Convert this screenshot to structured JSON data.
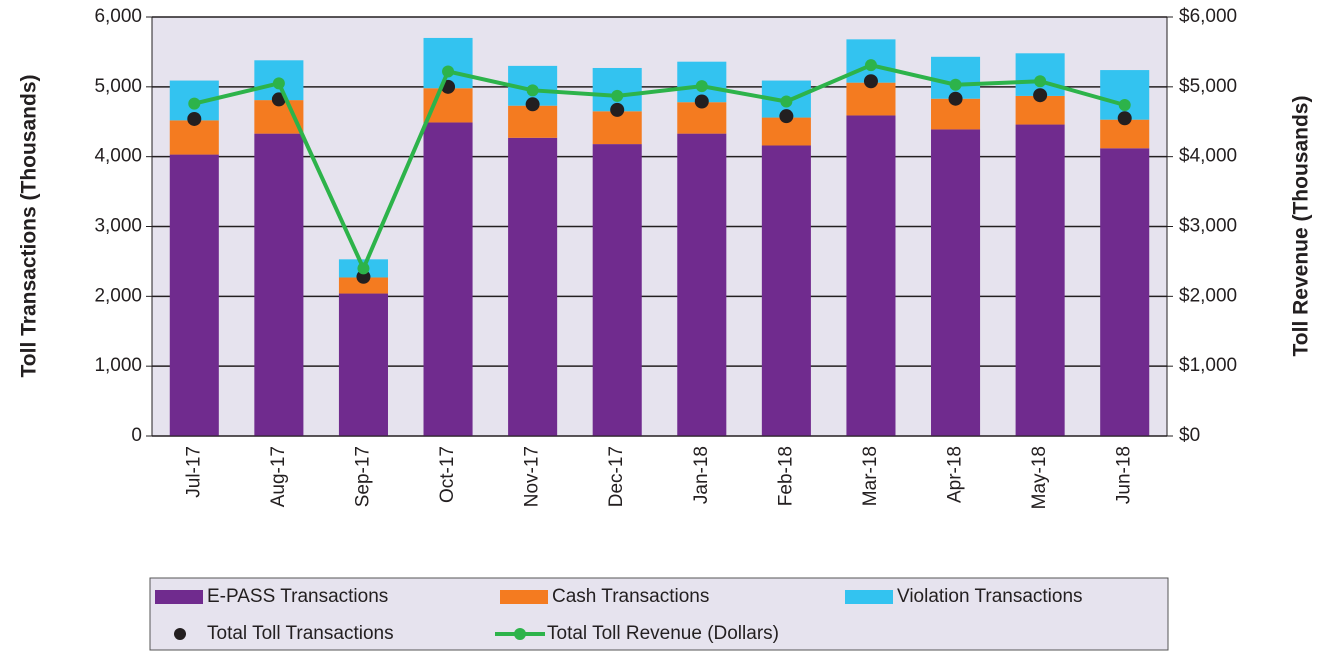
{
  "chart_data": {
    "type": "bar",
    "stacked": true,
    "categories": [
      "Jul-17",
      "Aug-17",
      "Sep-17",
      "Oct-17",
      "Nov-17",
      "Dec-17",
      "Jan-18",
      "Feb-18",
      "Mar-18",
      "Apr-18",
      "May-18",
      "Jun-18"
    ],
    "series": [
      {
        "name": "E-PASS Transactions",
        "kind": "bar",
        "color": "#702b8e",
        "values": [
          4030,
          4330,
          2040,
          4490,
          4270,
          4180,
          4330,
          4160,
          4590,
          4390,
          4460,
          4120
        ]
      },
      {
        "name": "Cash Transactions",
        "kind": "bar",
        "color": "#f47b20",
        "values": [
          490,
          480,
          230,
          490,
          460,
          470,
          450,
          400,
          470,
          440,
          410,
          410
        ]
      },
      {
        "name": "Violation Transactions",
        "kind": "bar",
        "color": "#33c3f0",
        "values": [
          570,
          570,
          260,
          720,
          570,
          620,
          580,
          530,
          620,
          600,
          610,
          710
        ]
      },
      {
        "name": "Total Toll Transactions",
        "kind": "marker",
        "color": "#231f20",
        "values": [
          4540,
          4820,
          2280,
          5000,
          4750,
          4670,
          4790,
          4580,
          5080,
          4830,
          4880,
          4550
        ]
      },
      {
        "name": "Total Toll Revenue (Dollars)",
        "kind": "line",
        "axis": "y2",
        "color": "#2db34a",
        "values": [
          4760,
          5050,
          2400,
          5220,
          4950,
          4870,
          5010,
          4790,
          5310,
          5030,
          5080,
          4740
        ]
      }
    ],
    "y_label": "Toll Transactions (Thousands)",
    "y2_label": "Toll Revenue (Thousands)",
    "ylim": [
      0,
      6000
    ],
    "yticks": [
      0,
      {
        "value": 1000,
        "label": "1,000"
      },
      {
        "value": 2000,
        "label": "2,000"
      },
      {
        "value": 3000,
        "label": "3,000"
      },
      {
        "value": 4000,
        "label": "4,000"
      },
      {
        "value": 5000,
        "label": "5,000"
      },
      {
        "value": 6000,
        "label": "6,000"
      }
    ],
    "y2lim": [
      0,
      6000
    ],
    "y2ticks": [
      {
        "value": 0,
        "label": "$0"
      },
      {
        "value": 1000,
        "label": "$1,000"
      },
      {
        "value": 2000,
        "label": "$2,000"
      },
      {
        "value": 3000,
        "label": "$3,000"
      },
      {
        "value": 4000,
        "label": "$4,000"
      },
      {
        "value": 5000,
        "label": "$5,000"
      },
      {
        "value": 6000,
        "label": "$6,000"
      }
    ],
    "grid": true,
    "legend": "bottom"
  }
}
